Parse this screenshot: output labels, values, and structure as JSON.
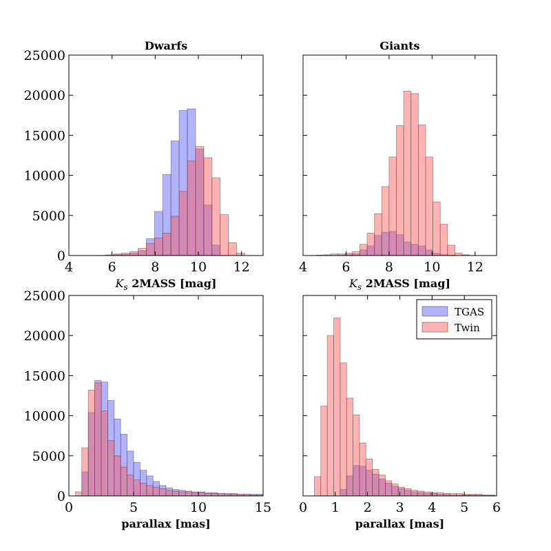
{
  "chart_data": [
    {
      "id": "dwarfs-ks",
      "type": "bar",
      "title": "Dwarfs",
      "xlabel": "Ks 2MASS [mag]",
      "xlabel_parts": {
        "italic": "K",
        "sub": "s",
        "rest": "2MASS [mag]"
      },
      "ylabel": "",
      "xlim": [
        4,
        13
      ],
      "ylim": [
        0,
        25000
      ],
      "xticks": [
        4,
        6,
        8,
        10,
        12
      ],
      "yticks": [
        0,
        5000,
        10000,
        15000,
        20000,
        25000
      ],
      "show_yticklabels": true,
      "bin_edges": [
        4.17,
        4.55,
        4.93,
        5.31,
        5.69,
        6.07,
        6.45,
        6.83,
        7.21,
        7.59,
        7.97,
        8.35,
        8.73,
        9.11,
        9.49,
        9.87,
        10.25,
        10.63,
        11.01,
        11.39,
        11.77,
        12.15,
        12.53
      ],
      "series": [
        {
          "name": "TGAS",
          "color": "#5555ff",
          "values": [
            0,
            0,
            0,
            20,
            80,
            100,
            150,
            300,
            600,
            2100,
            5500,
            10100,
            14300,
            18100,
            18300,
            13300,
            6300,
            1300,
            0,
            0,
            0,
            0
          ]
        },
        {
          "name": "Twin",
          "color": "#ff5555",
          "values": [
            0,
            0,
            0,
            0,
            0,
            200,
            300,
            500,
            900,
            1500,
            2200,
            2800,
            4900,
            8000,
            11800,
            13600,
            12200,
            9700,
            5100,
            1600,
            300,
            0
          ]
        }
      ]
    },
    {
      "id": "giants-ks",
      "type": "bar",
      "title": "Giants",
      "xlabel": "Ks 2MASS [mag]",
      "xlabel_parts": {
        "italic": "K",
        "sub": "s",
        "rest": "2MASS [mag]"
      },
      "ylabel": "",
      "xlim": [
        4,
        13
      ],
      "ylim": [
        0,
        25000
      ],
      "xticks": [
        4,
        6,
        8,
        10,
        12
      ],
      "yticks": [
        0,
        5000,
        10000,
        15000,
        20000,
        25000
      ],
      "show_yticklabels": false,
      "bin_edges": [
        4.26,
        4.6,
        4.94,
        5.28,
        5.62,
        5.96,
        6.3,
        6.64,
        6.98,
        7.32,
        7.66,
        8.0,
        8.34,
        8.68,
        9.02,
        9.36,
        9.7,
        10.04,
        10.38,
        10.72,
        11.06,
        11.4,
        11.74,
        12.08
      ],
      "series": [
        {
          "name": "TGAS",
          "color": "#5555ff",
          "values": [
            0,
            0,
            0,
            20,
            50,
            100,
            200,
            700,
            1200,
            2500,
            2900,
            3000,
            2600,
            1700,
            1400,
            1200,
            700,
            300,
            100,
            50,
            0,
            0,
            0
          ]
        },
        {
          "name": "Twin",
          "color": "#ff5555",
          "values": [
            0,
            50,
            100,
            200,
            200,
            300,
            500,
            1400,
            2800,
            5200,
            8600,
            12300,
            16200,
            20500,
            20200,
            16300,
            12300,
            6700,
            3900,
            1300,
            300,
            100,
            0
          ]
        }
      ]
    },
    {
      "id": "dwarfs-parallax",
      "type": "bar",
      "title": "",
      "xlabel": "parallax [mas]",
      "ylabel": "",
      "xlim": [
        0,
        15
      ],
      "ylim": [
        0,
        25000
      ],
      "xticks": [
        0,
        5,
        10,
        15
      ],
      "yticks": [
        0,
        5000,
        10000,
        15000,
        20000,
        25000
      ],
      "show_yticklabels": true,
      "bin_edges": [
        0.5,
        1.0,
        1.5,
        2.0,
        2.5,
        3.0,
        3.5,
        4.0,
        4.5,
        5.0,
        5.5,
        6.0,
        6.5,
        7.0,
        7.5,
        8.0,
        8.5,
        9.0,
        9.5,
        10.0,
        10.5,
        11.0,
        11.5,
        12.0,
        12.5,
        13.0,
        13.5,
        14.0,
        14.5,
        15.0
      ],
      "series": [
        {
          "name": "TGAS",
          "color": "#5555ff",
          "values": [
            0,
            3000,
            10400,
            14400,
            14200,
            11900,
            9600,
            7700,
            5600,
            4200,
            3200,
            2500,
            1800,
            1300,
            1000,
            800,
            700,
            600,
            500,
            500,
            400,
            400,
            300,
            300,
            300,
            200,
            200,
            200,
            200
          ]
        },
        {
          "name": "Twin",
          "color": "#ff5555",
          "values": [
            500,
            6000,
            13200,
            14100,
            10600,
            6900,
            5000,
            3600,
            2600,
            2000,
            1600,
            1300,
            1100,
            900,
            700,
            600,
            500,
            500,
            400,
            400,
            300,
            300,
            300,
            200,
            200,
            200,
            200,
            100,
            100
          ]
        }
      ]
    },
    {
      "id": "giants-parallax",
      "type": "bar",
      "title": "",
      "xlabel": "parallax [mas]",
      "ylabel": "",
      "xlim": [
        0,
        6
      ],
      "ylim": [
        0,
        25000
      ],
      "xticks": [
        0,
        1,
        2,
        3,
        4,
        5,
        6
      ],
      "yticks": [
        0,
        5000,
        10000,
        15000,
        20000,
        25000
      ],
      "show_yticklabels": false,
      "bin_edges": [
        0.35,
        0.55,
        0.75,
        0.95,
        1.15,
        1.35,
        1.55,
        1.75,
        1.95,
        2.15,
        2.35,
        2.55,
        2.75,
        2.95,
        3.15,
        3.35,
        3.55,
        3.75,
        3.95,
        4.15,
        4.35,
        4.55,
        4.75,
        4.95,
        5.15,
        5.35,
        5.55,
        5.75,
        5.95
      ],
      "series": [
        {
          "name": "TGAS",
          "color": "#5555ff",
          "values": [
            0,
            0,
            0,
            0,
            800,
            2500,
            3800,
            3700,
            3200,
            2700,
            2100,
            1600,
            1200,
            900,
            700,
            500,
            400,
            300,
            300,
            200,
            200,
            100,
            100,
            100,
            100,
            100,
            100,
            100
          ]
        },
        {
          "name": "Twin",
          "color": "#ff5555",
          "values": [
            2400,
            11200,
            20000,
            22200,
            16600,
            12200,
            10100,
            6600,
            4600,
            3300,
            2600,
            1900,
            1500,
            1100,
            900,
            700,
            600,
            500,
            400,
            400,
            300,
            300,
            300,
            200,
            200,
            200,
            100,
            100
          ]
        }
      ],
      "legend": {
        "placement": "top-right",
        "entries": [
          "TGAS",
          "Twin"
        ]
      }
    }
  ]
}
